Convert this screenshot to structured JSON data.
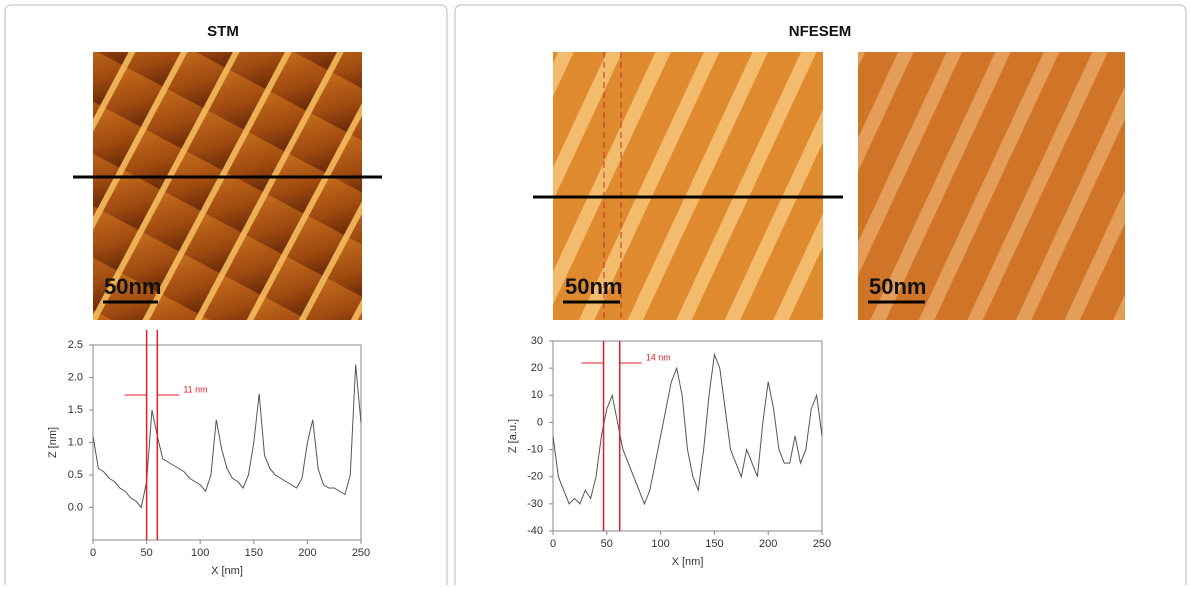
{
  "chart_data": [
    {
      "type": "line",
      "panel_title": "STM",
      "scale_bar": "50nm",
      "x_label": "X [nm]",
      "y_label": "Z [nm]",
      "x": [
        0,
        5,
        10,
        15,
        20,
        25,
        30,
        35,
        40,
        45,
        50,
        55,
        60,
        65,
        70,
        75,
        80,
        85,
        90,
        95,
        100,
        105,
        110,
        115,
        120,
        125,
        130,
        135,
        140,
        145,
        150,
        155,
        160,
        165,
        170,
        175,
        180,
        185,
        190,
        195,
        200,
        205,
        210,
        215,
        220,
        225,
        230,
        235,
        240,
        245,
        250
      ],
      "series": [
        {
          "color": "#555555",
          "values": [
            1.1,
            0.6,
            0.55,
            0.45,
            0.4,
            0.3,
            0.25,
            0.15,
            0.1,
            0.0,
            0.4,
            1.5,
            1.1,
            0.75,
            0.7,
            0.65,
            0.6,
            0.55,
            0.45,
            0.4,
            0.35,
            0.25,
            0.5,
            1.35,
            0.9,
            0.6,
            0.45,
            0.4,
            0.3,
            0.5,
            1.0,
            1.75,
            0.8,
            0.6,
            0.5,
            0.45,
            0.4,
            0.35,
            0.3,
            0.45,
            1.0,
            1.35,
            0.6,
            0.35,
            0.3,
            0.3,
            0.25,
            0.2,
            0.5,
            2.2,
            1.3
          ]
        }
      ],
      "xlim": [
        0,
        250
      ],
      "xticks": [
        0,
        50,
        100,
        150,
        200,
        250
      ],
      "ylim": [
        -0.5,
        2.5
      ],
      "yticks": [
        {
          "value": 0,
          "label": "0.0"
        },
        0.5,
        {
          "value": 1,
          "label": "1.0"
        },
        1.5,
        {
          "value": 2,
          "label": "2.0"
        },
        2.5
      ],
      "markers": [
        50,
        60
      ],
      "marker_color": "#e0202a",
      "annotation": "11 nm"
    },
    {
      "type": "line",
      "panel_title": "NFESEM",
      "scale_bar": "50nm",
      "x_label": "X [nm]",
      "y_label": "Z [a.u.]",
      "x": [
        0,
        5,
        10,
        15,
        20,
        25,
        30,
        35,
        40,
        45,
        50,
        55,
        60,
        65,
        70,
        75,
        80,
        85,
        90,
        95,
        100,
        105,
        110,
        115,
        120,
        125,
        130,
        135,
        140,
        145,
        150,
        155,
        160,
        165,
        170,
        175,
        180,
        185,
        190,
        195,
        200,
        205,
        210,
        215,
        220,
        225,
        230,
        235,
        240,
        245,
        250
      ],
      "series": [
        {
          "color": "#555555",
          "values": [
            -5,
            -20,
            -25,
            -30,
            -28,
            -30,
            -25,
            -28,
            -20,
            -5,
            5,
            10,
            0,
            -10,
            -15,
            -20,
            -25,
            -30,
            -25,
            -15,
            -5,
            5,
            15,
            20,
            10,
            -10,
            -20,
            -25,
            -10,
            10,
            25,
            20,
            5,
            -10,
            -15,
            -20,
            -10,
            -15,
            -20,
            0,
            15,
            5,
            -10,
            -15,
            -15,
            -5,
            -15,
            -10,
            5,
            10,
            -5
          ]
        }
      ],
      "xlim": [
        0,
        250
      ],
      "xticks": [
        0,
        50,
        100,
        150,
        200,
        250
      ],
      "ylim": [
        -40,
        30
      ],
      "yticks": [
        -40,
        -30,
        -20,
        -10,
        0,
        10,
        20,
        30
      ],
      "markers": [
        47,
        62
      ],
      "marker_color": "#e0202a",
      "annotation": "14 nm",
      "second_scale_bar": "50nm"
    }
  ]
}
